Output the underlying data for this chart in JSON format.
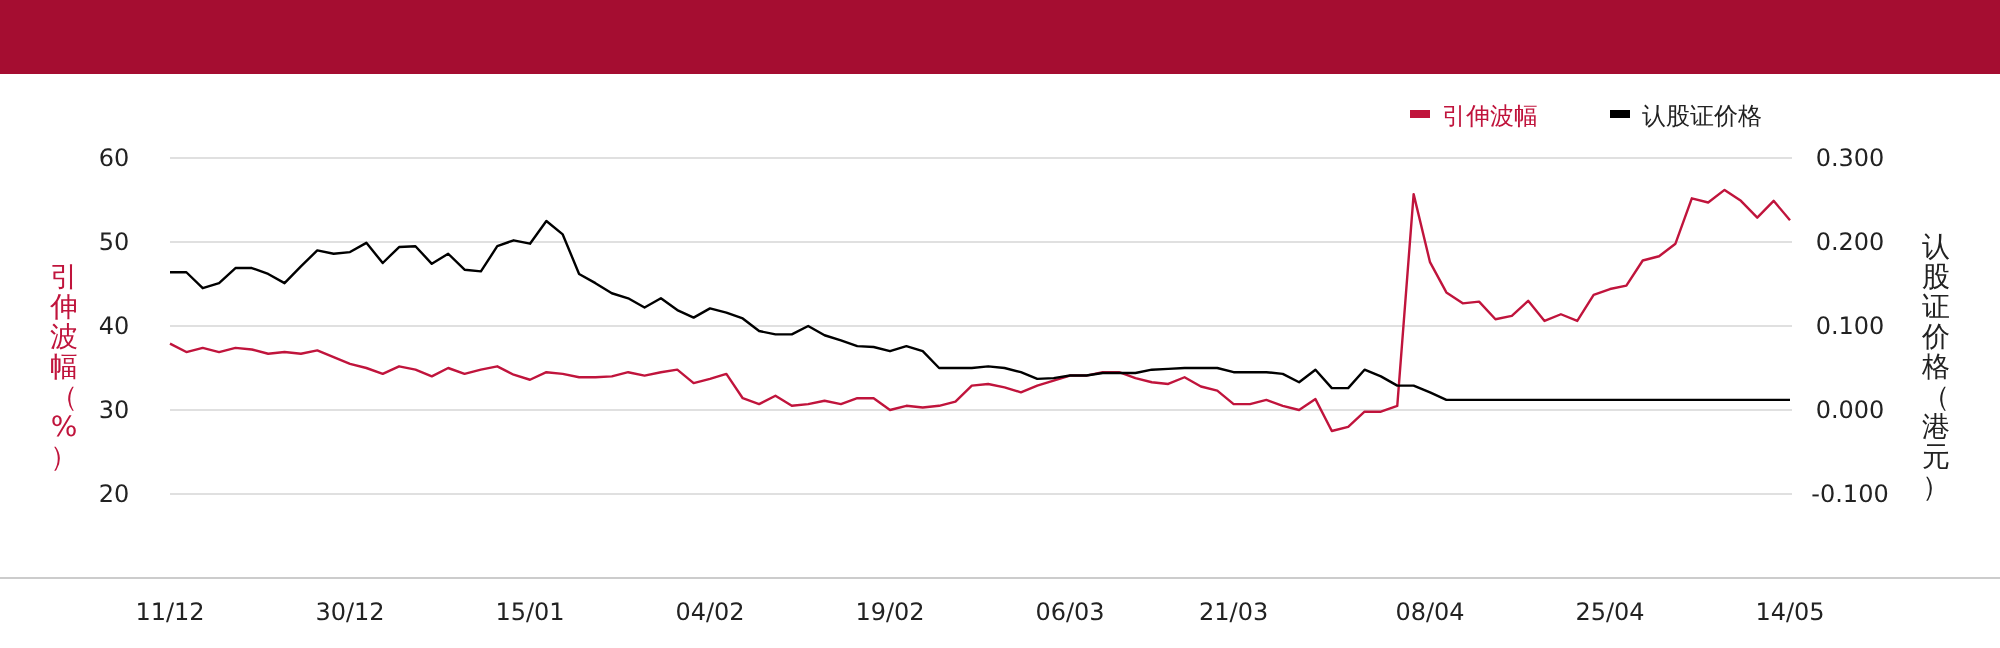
{
  "chart_data": {
    "type": "line",
    "categories": [
      "11/12",
      null,
      null,
      null,
      null,
      null,
      null,
      null,
      null,
      null,
      null,
      "30/12",
      null,
      null,
      null,
      null,
      null,
      null,
      null,
      null,
      null,
      null,
      "15/01",
      null,
      null,
      null,
      null,
      null,
      null,
      null,
      null,
      null,
      null,
      "04/02",
      null,
      null,
      null,
      null,
      null,
      null,
      null,
      null,
      null,
      null,
      "19/02",
      null,
      null,
      null,
      null,
      null,
      null,
      null,
      null,
      null,
      null,
      "06/03",
      null,
      null,
      null,
      null,
      null,
      null,
      null,
      null,
      null,
      "21/03",
      null,
      null,
      null,
      null,
      null,
      null,
      null,
      null,
      null,
      null,
      null,
      "08/04",
      null,
      null,
      null,
      null,
      null,
      null,
      null,
      null,
      null,
      null,
      "25/04",
      null,
      null,
      null,
      null,
      null,
      null,
      null,
      null,
      null,
      null,
      "14/05"
    ],
    "series": [
      {
        "name": "引伸波幅",
        "color": "#c0143c",
        "values": [
          37.9,
          36.9,
          37.4,
          36.9,
          37.4,
          37.2,
          36.7,
          36.9,
          36.7,
          37.1,
          36.3,
          35.5,
          35.0,
          34.3,
          35.2,
          34.8,
          34.0,
          35.0,
          34.3,
          34.8,
          35.2,
          34.2,
          33.6,
          34.5,
          34.3,
          33.9,
          33.9,
          34.0,
          34.5,
          34.1,
          34.5,
          34.8,
          33.2,
          33.7,
          34.3,
          31.4,
          30.7,
          31.7,
          30.5,
          30.7,
          31.1,
          30.7,
          31.4,
          31.4,
          30.0,
          30.5,
          30.3,
          30.5,
          31.0,
          32.9,
          33.1,
          32.7,
          32.1,
          32.9,
          33.5,
          34.1,
          34.1,
          34.5,
          34.5,
          33.8,
          33.3,
          33.1,
          33.9,
          32.8,
          32.3,
          30.7,
          30.7,
          31.2,
          30.5,
          30.0,
          31.3,
          27.5,
          28.0,
          29.8,
          29.8,
          30.5,
          55.7,
          47.6,
          44.0,
          42.7,
          42.9,
          40.8,
          41.2,
          43.0,
          40.6,
          41.4,
          40.6,
          43.7,
          44.4,
          44.8,
          47.8,
          48.3,
          49.8,
          55.2,
          54.7,
          56.2,
          54.9,
          52.9,
          54.9,
          52.6
        ]
      },
      {
        "name": "认股证价格",
        "color": "#000000",
        "axis": "y2",
        "values": [
          0.164,
          0.164,
          0.145,
          0.151,
          0.169,
          0.169,
          0.162,
          0.151,
          0.171,
          0.19,
          0.186,
          0.188,
          0.199,
          0.175,
          0.194,
          0.195,
          0.174,
          0.186,
          0.167,
          0.165,
          0.195,
          0.202,
          0.198,
          0.225,
          0.209,
          0.162,
          0.151,
          0.139,
          0.133,
          0.122,
          0.133,
          0.119,
          0.11,
          0.121,
          0.116,
          0.109,
          0.094,
          0.09,
          0.09,
          0.1,
          0.089,
          0.083,
          0.076,
          0.075,
          0.07,
          0.076,
          0.07,
          0.05,
          0.05,
          0.05,
          0.052,
          0.05,
          0.045,
          0.037,
          0.038,
          0.041,
          0.041,
          0.044,
          0.044,
          0.044,
          0.048,
          0.049,
          0.05,
          0.05,
          0.05,
          0.045,
          0.045,
          0.045,
          0.043,
          0.033,
          0.048,
          0.026,
          0.026,
          0.048,
          0.04,
          0.029,
          0.029,
          0.021,
          0.012,
          0.012,
          0.012,
          0.012,
          0.012,
          0.012,
          0.012,
          0.012,
          0.012,
          0.012,
          0.012,
          0.012,
          0.012,
          0.012,
          0.012,
          0.012,
          0.012,
          0.012,
          0.012,
          0.012,
          0.012,
          0.012
        ]
      }
    ],
    "ylim": [
      10,
      60
    ],
    "yticks": [
      20,
      30,
      40,
      50,
      60
    ],
    "y2lim": [
      -0.2,
      0.3
    ],
    "y2ticks": [
      {
        "value": -0.1,
        "label": "-0.100"
      },
      {
        "value": 0,
        "label": "0.000"
      },
      {
        "value": 0.1,
        "label": "0.100"
      },
      {
        "value": 0.2,
        "label": "0.200"
      },
      {
        "value": 0.3,
        "label": "0.300"
      }
    ],
    "ylabel": "引伸波幅（%）",
    "y2label": "认股证价格（港元）",
    "grid": "y",
    "legend": "top right"
  }
}
